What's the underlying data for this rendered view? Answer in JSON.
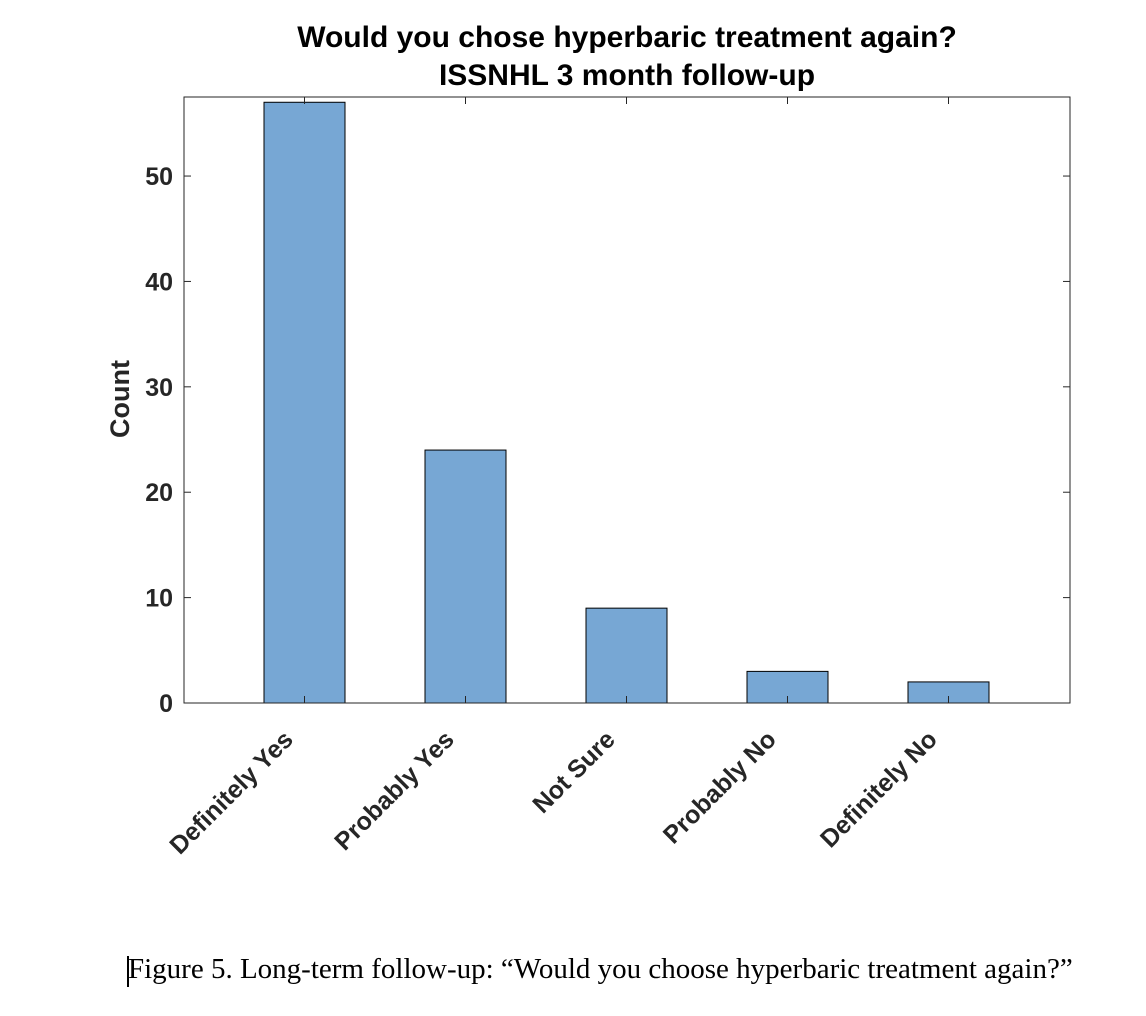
{
  "chart_data": {
    "type": "bar",
    "title": [
      "Would you chose hyperbaric treatment again?",
      "ISSNHL 3 month follow-up"
    ],
    "categories": [
      "Definitely Yes",
      "Probably Yes",
      "Not Sure",
      "Probably No",
      "Definitely No"
    ],
    "values": [
      57,
      24,
      9,
      3,
      2
    ],
    "xlabel": "",
    "ylabel": "Count",
    "ylim": [
      0,
      57.5
    ],
    "yticks": [
      0,
      10,
      20,
      30,
      40,
      50
    ],
    "bar_color": "#77a7d4",
    "grid": false
  },
  "caption": "Figure 5. Long-term follow-up: “Would you choose hyperbaric treatment again?”"
}
